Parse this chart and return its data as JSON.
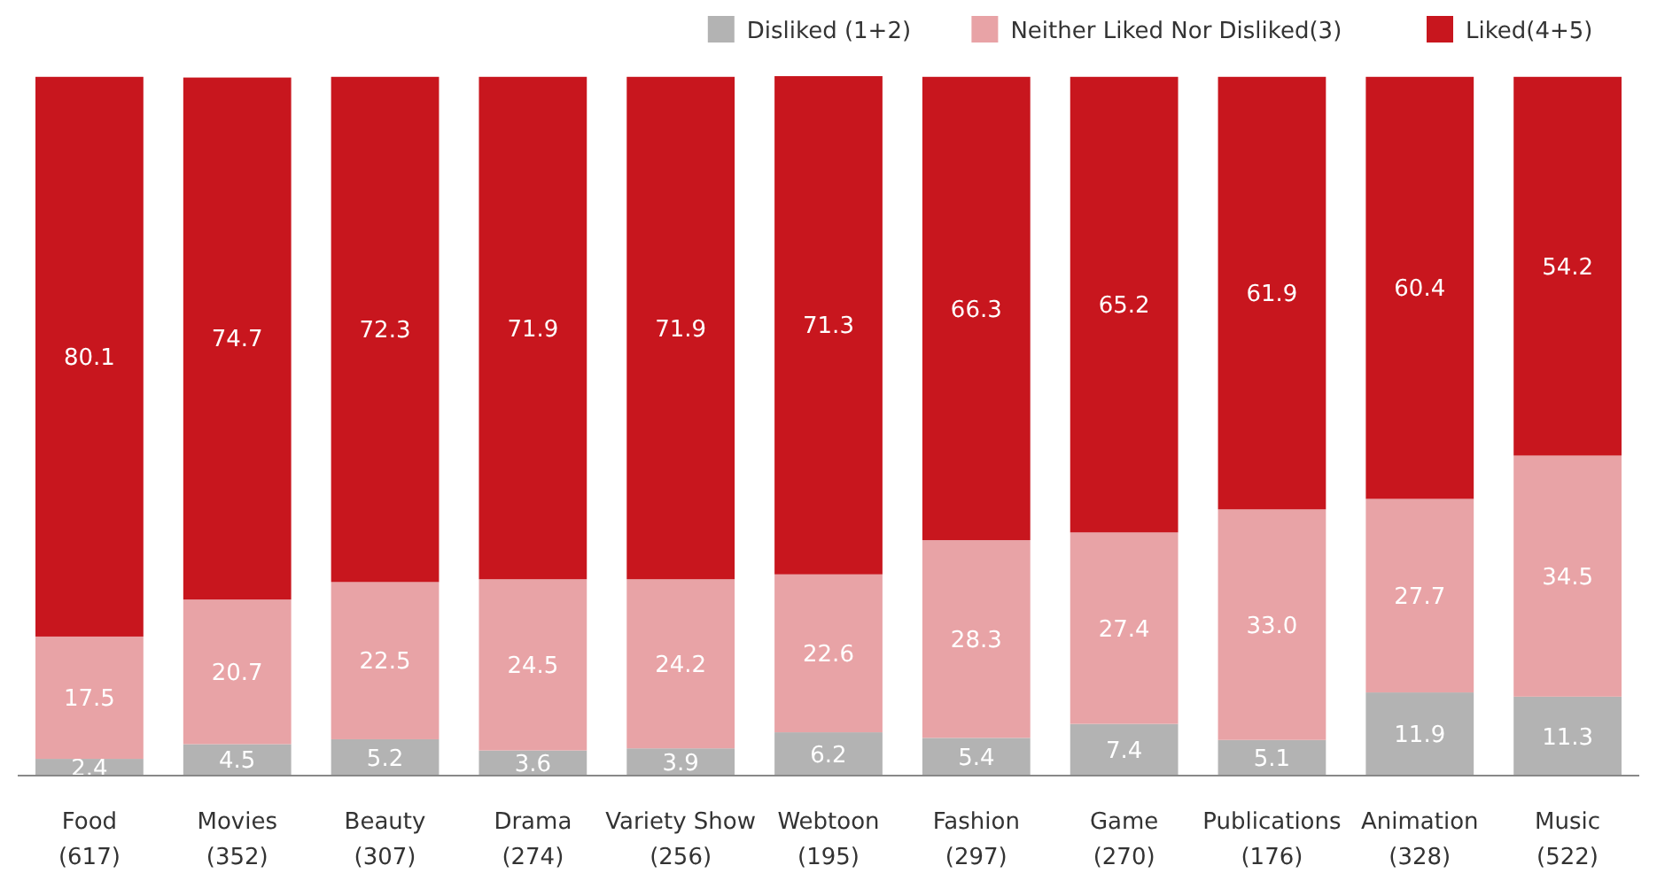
{
  "chart_data": {
    "type": "bar",
    "stacked": true,
    "data_labels": true,
    "legend": "top right",
    "categories": [
      "Food\n(617)",
      "Movies\n(352)",
      "Beauty\n(307)",
      "Drama\n(274)",
      "Variety Show\n(256)",
      "Webtoon\n(195)",
      "Fashion\n(297)",
      "Game\n(270)",
      "Publications\n(176)",
      "Animation\n(328)",
      "Music\n(522)"
    ],
    "series": [
      {
        "name": "Disliked (1+2)",
        "color": "#b3b3b3",
        "values": [
          2.4,
          4.5,
          5.2,
          3.6,
          3.9,
          6.2,
          5.4,
          7.4,
          5.1,
          11.9,
          11.3
        ]
      },
      {
        "name": "Neither Liked Nor Disliked(3)",
        "color": "#e8a3a6",
        "values": [
          17.5,
          20.7,
          22.5,
          24.5,
          24.2,
          22.6,
          28.3,
          27.4,
          33.0,
          27.7,
          34.5
        ],
        "value_labels": [
          "17.5",
          "20.7",
          "22.5",
          "24.5",
          "24.2",
          "22.6",
          "28.3",
          "27.4",
          "33.0",
          "27.7",
          "34.5"
        ]
      },
      {
        "name": "Liked(4+5)",
        "color": "#c8161e",
        "values": [
          80.1,
          74.7,
          72.3,
          71.9,
          71.9,
          71.3,
          66.3,
          65.2,
          61.9,
          60.4,
          54.2
        ]
      }
    ]
  }
}
